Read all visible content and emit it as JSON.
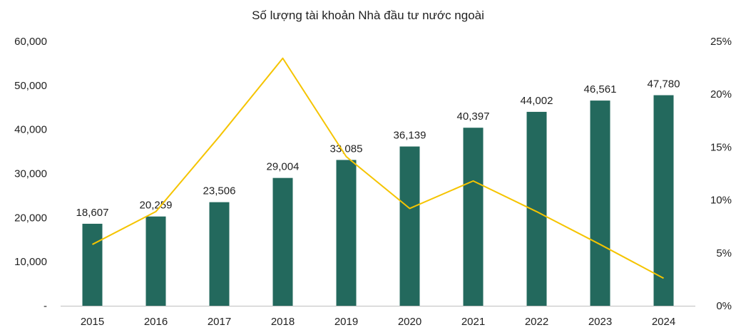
{
  "chart_data": {
    "type": "bar",
    "title": "Số lượng tài khoản Nhà đầu tư nước ngoài",
    "categories": [
      "2015",
      "2016",
      "2017",
      "2018",
      "2019",
      "2020",
      "2021",
      "2022",
      "2023",
      "2024"
    ],
    "series": [
      {
        "type": "bar",
        "axis": "left",
        "color": "#23695d",
        "values": [
          18607,
          20259,
          23506,
          29004,
          33085,
          36139,
          40397,
          44002,
          46561,
          47780
        ],
        "data_labels": [
          "18,607",
          "20,259",
          "23,506",
          "29,004",
          "33,085",
          "36,139",
          "40,397",
          "44,002",
          "46,561",
          "47,780"
        ]
      },
      {
        "type": "line",
        "axis": "right",
        "color": "#f5c400",
        "values": [
          5.8,
          8.9,
          16.0,
          23.4,
          14.1,
          9.2,
          11.8,
          8.9,
          5.8,
          2.6
        ]
      }
    ],
    "ylim_left": [
      0,
      60000
    ],
    "ylim_right": [
      0,
      25
    ],
    "y_left_ticks": [
      "-",
      "10,000",
      "20,000",
      "30,000",
      "40,000",
      "50,000",
      "60,000"
    ],
    "y_right_ticks": [
      "0%",
      "5%",
      "10%",
      "15%",
      "20%",
      "25%"
    ],
    "axis_color": "#bfbfbf",
    "grid": false,
    "legend": "none"
  }
}
